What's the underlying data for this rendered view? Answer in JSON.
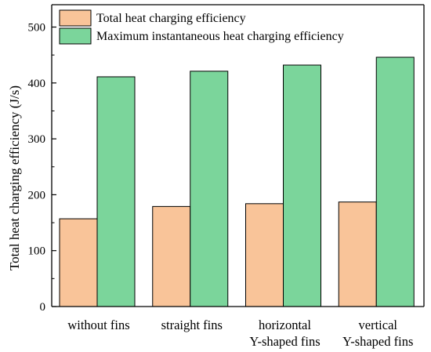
{
  "chart_data": {
    "type": "bar",
    "categories": [
      [
        "without fins"
      ],
      [
        "straight fins"
      ],
      [
        "horizontal",
        "Y-shaped fins"
      ],
      [
        "vertical",
        "Y-shaped fins"
      ]
    ],
    "series": [
      {
        "name": "Total heat charging efficiency",
        "values": [
          157,
          179,
          184,
          187
        ],
        "color": "#f9c499"
      },
      {
        "name": "Maximum instantaneous heat charging efficiency",
        "values": [
          411,
          421,
          432,
          446
        ],
        "color": "#7bd59b"
      }
    ],
    "ylabel": "Total heat charging efficiency (J/s)",
    "xlabel": "",
    "ylim": [
      0,
      540
    ],
    "yticks": [
      0,
      100,
      200,
      300,
      400,
      500
    ],
    "legend": "top-left",
    "grid": false
  }
}
